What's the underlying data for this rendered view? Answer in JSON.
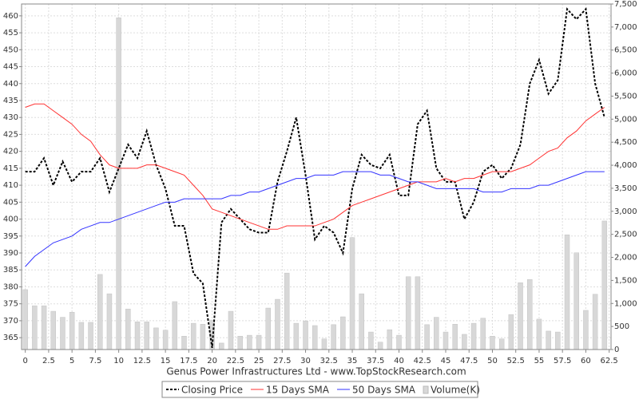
{
  "chart_data": {
    "type": "line",
    "x_label": "Genus Power Infrastructures Ltd - www.TopStockResearch.com",
    "x": [
      0,
      1,
      2,
      3,
      4,
      5,
      6,
      7,
      8,
      9,
      10,
      11,
      12,
      13,
      14,
      15,
      16,
      17,
      18,
      19,
      20,
      21,
      22,
      23,
      24,
      25,
      26,
      27,
      28,
      29,
      30,
      31,
      32,
      33,
      34,
      35,
      36,
      37,
      38,
      39,
      40,
      41,
      42,
      43,
      44,
      45,
      46,
      47,
      48,
      49,
      50,
      51,
      52,
      53,
      54,
      55,
      56,
      57,
      58,
      59,
      60,
      61,
      62
    ],
    "xlim": [
      -0.4,
      62.7
    ],
    "xticks": [
      0,
      2.5,
      5,
      7.5,
      10,
      12.5,
      15,
      17.5,
      20,
      22.5,
      25,
      27.5,
      30,
      32.5,
      35,
      37.5,
      40,
      42.5,
      45,
      47.5,
      50,
      52.5,
      55,
      57.5,
      60,
      62.5
    ],
    "ylim": [
      361.5,
      463.5
    ],
    "yticks": [
      365,
      370,
      375,
      380,
      385,
      390,
      395,
      400,
      405,
      410,
      415,
      420,
      425,
      430,
      435,
      440,
      445,
      450,
      455,
      460
    ],
    "y2lim": [
      0,
      7500
    ],
    "y2ticks": [
      0,
      500,
      {
        "value": 1000,
        "label": "1,000"
      },
      {
        "value": 1500,
        "label": "1,500"
      },
      {
        "value": 2000,
        "label": "2,000"
      },
      {
        "value": 2500,
        "label": "2,500"
      },
      {
        "value": 3000,
        "label": "3,000"
      },
      {
        "value": 3500,
        "label": "3,500"
      },
      {
        "value": 4000,
        "label": "4,000"
      },
      {
        "value": 4500,
        "label": "4,500"
      },
      {
        "value": 5000,
        "label": "5,000"
      },
      {
        "value": 5500,
        "label": "5,500"
      },
      {
        "value": 6000,
        "label": "6,000"
      },
      {
        "value": 6500,
        "label": "6,500"
      },
      {
        "value": 7000,
        "label": "7,000"
      },
      {
        "value": 7500,
        "label": "7,500"
      }
    ],
    "grid": true,
    "series": [
      {
        "name": "Closing Price",
        "color": "#000000",
        "line_style": "dashed",
        "values": [
          414,
          414,
          418,
          410,
          417,
          411,
          414,
          414,
          418,
          408,
          415,
          422,
          418,
          426,
          416,
          409,
          398,
          398,
          384,
          381,
          362,
          399,
          403,
          400,
          397,
          396,
          396,
          411,
          420,
          430,
          413,
          394,
          398,
          396,
          390,
          409,
          419,
          416,
          415,
          419,
          407,
          407,
          428,
          432,
          415,
          411,
          411,
          400,
          405,
          414,
          416,
          412,
          415,
          422,
          440,
          447,
          437,
          441,
          462,
          459,
          462,
          440,
          430
        ]
      },
      {
        "name": "15 Days SMA",
        "color": "#ff3333",
        "line_style": "solid",
        "values": [
          433,
          434,
          434,
          432,
          430,
          428,
          425,
          423,
          419,
          416,
          415,
          415,
          415,
          416,
          416,
          415,
          414,
          413,
          410,
          407,
          403,
          402,
          401,
          400,
          399,
          398,
          397,
          397,
          398,
          398,
          398,
          398,
          399,
          400,
          402,
          404,
          405,
          406,
          407,
          408,
          409,
          410,
          411,
          411,
          411,
          412,
          411,
          412,
          412,
          413,
          414,
          414,
          414,
          415,
          416,
          418,
          420,
          421,
          424,
          426,
          429,
          431,
          433
        ]
      },
      {
        "name": "50 Days SMA",
        "color": "#3333ff",
        "line_style": "solid",
        "values": [
          386,
          389,
          391,
          393,
          394,
          395,
          397,
          398,
          399,
          399,
          400,
          401,
          402,
          403,
          404,
          405,
          405,
          406,
          406,
          406,
          406,
          406,
          407,
          407,
          408,
          408,
          409,
          410,
          411,
          412,
          412,
          413,
          413,
          413,
          414,
          414,
          414,
          414,
          413,
          413,
          412,
          411,
          411,
          410,
          409,
          409,
          409,
          409,
          409,
          408,
          408,
          408,
          409,
          409,
          409,
          410,
          410,
          411,
          412,
          413,
          414,
          414,
          414
        ]
      },
      {
        "name": "Volume(K)",
        "type": "bar",
        "axis": "y2",
        "color": "#d8d8d8",
        "values": [
          1300,
          950,
          950,
          830,
          700,
          810,
          590,
          590,
          1630,
          1210,
          7200,
          880,
          600,
          600,
          470,
          420,
          1040,
          290,
          570,
          550,
          640,
          140,
          830,
          290,
          310,
          310,
          900,
          1090,
          1660,
          570,
          620,
          520,
          230,
          540,
          710,
          2430,
          1210,
          380,
          160,
          430,
          310,
          1580,
          1580,
          540,
          700,
          380,
          550,
          330,
          570,
          680,
          290,
          230,
          760,
          1450,
          1520,
          660,
          400,
          380,
          2490,
          2100,
          850,
          1200,
          2790
        ]
      }
    ]
  }
}
